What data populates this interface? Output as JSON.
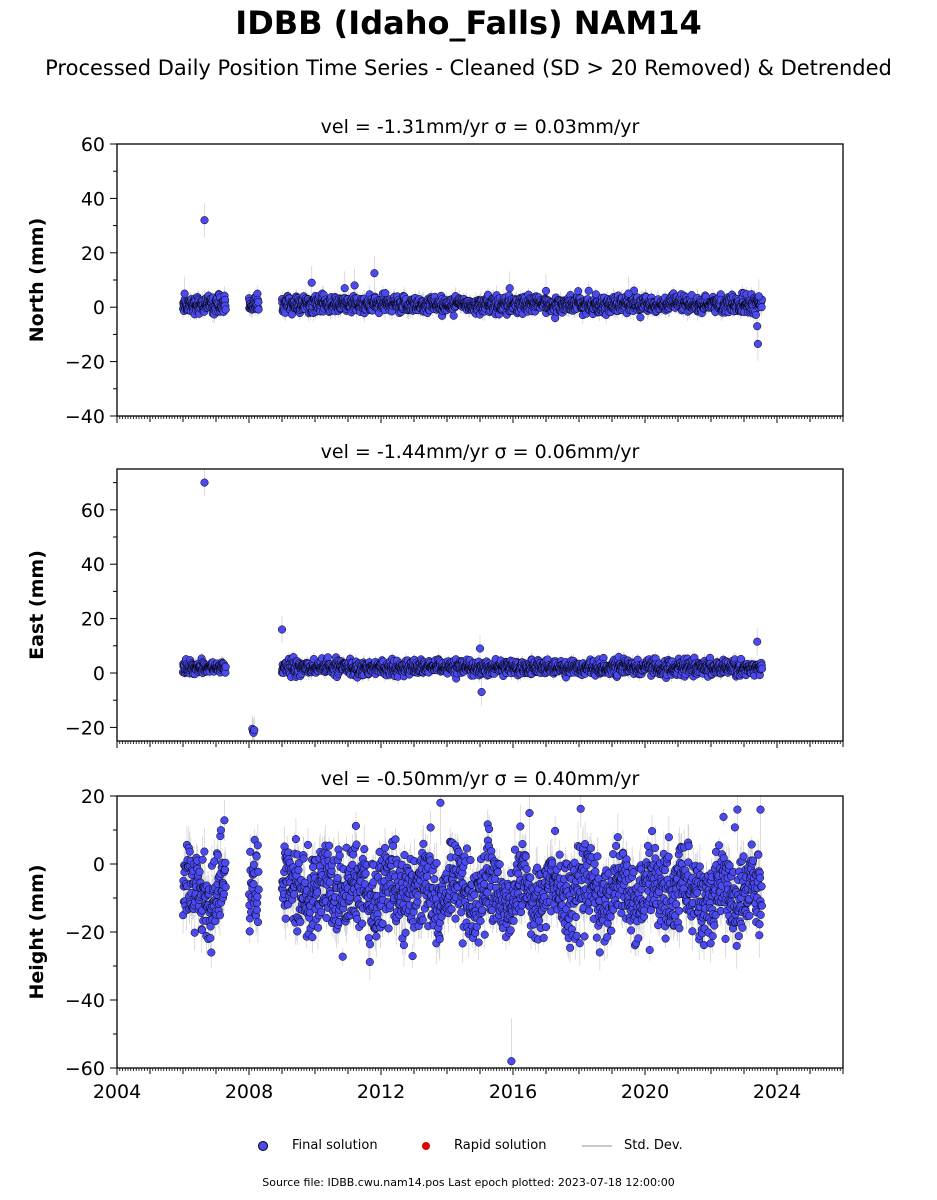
{
  "title": "IDBB (Idaho_Falls) NAM14",
  "subtitle": "Processed Daily Position Time Series - Cleaned (SD > 20 Removed) & Detrended",
  "footer": "Source file: IDBB.cwu.nam14.pos  Last epoch plotted: 2023-07-18 12:00:00",
  "legend": {
    "final": "Final solution",
    "rapid": "Rapid solution",
    "stddev": "Std. Dev."
  },
  "colors": {
    "final": "#4a4af0",
    "rapid": "#e00000",
    "stddev": "#b0b0b0",
    "edge": "#000000"
  },
  "chart_data": [
    {
      "type": "scatter",
      "title": "vel = -1.31mm/yr   σ = 0.03mm/yr",
      "ylabel": "North (mm)",
      "ylim": [
        -40,
        60
      ],
      "yticks": [
        -40,
        -20,
        0,
        20,
        40,
        60
      ],
      "xlim": [
        2004.0,
        2026.0
      ],
      "xticks": [
        2004,
        2008,
        2012,
        2016,
        2020,
        2024
      ],
      "segments": [
        [
          2006.0,
          2007.3
        ],
        [
          2008.0,
          2008.3
        ],
        [
          2009.0,
          2023.55
        ]
      ],
      "base": 1.0,
      "noise": 1.5,
      "sd": 2.5,
      "outliers": [
        [
          2006.65,
          32
        ],
        [
          2006.05,
          5
        ],
        [
          2009.9,
          9
        ],
        [
          2010.9,
          7
        ],
        [
          2011.2,
          8
        ],
        [
          2011.8,
          12.5
        ],
        [
          2015.9,
          7
        ],
        [
          2017.0,
          6
        ],
        [
          2019.5,
          5
        ],
        [
          2023.4,
          -7
        ],
        [
          2023.42,
          -13.5
        ],
        [
          2023.45,
          4
        ]
      ],
      "show_xlabels": false
    },
    {
      "type": "scatter",
      "title": "vel = -1.44mm/yr   σ = 0.06mm/yr",
      "ylabel": "East (mm)",
      "ylim": [
        -25,
        75
      ],
      "yticks": [
        -20,
        0,
        20,
        40,
        60
      ],
      "xlim": [
        2004.0,
        2026.0
      ],
      "xticks": [
        2004,
        2008,
        2012,
        2016,
        2020,
        2024
      ],
      "segments": [
        [
          2006.0,
          2007.3
        ],
        [
          2009.0,
          2023.55
        ]
      ],
      "base": 2.0,
      "noise": 1.3,
      "sd": 2.0,
      "outliers": [
        [
          2006.65,
          70
        ],
        [
          2008.1,
          -20.5
        ],
        [
          2008.12,
          -21.5
        ],
        [
          2008.14,
          -22
        ],
        [
          2008.16,
          -21
        ],
        [
          2009.0,
          16
        ],
        [
          2015.0,
          9
        ],
        [
          2015.05,
          -7
        ],
        [
          2023.4,
          11.5
        ]
      ],
      "show_xlabels": false
    },
    {
      "type": "scatter",
      "title": "vel = -0.50mm/yr   σ = 0.40mm/yr",
      "ylabel": "Height (mm)",
      "ylim": [
        -60,
        20
      ],
      "yticks": [
        -60,
        -40,
        -20,
        0,
        20
      ],
      "xlim": [
        2004.0,
        2026.0
      ],
      "xticks": [
        2004,
        2008,
        2012,
        2016,
        2020,
        2024
      ],
      "segments": [
        [
          2006.0,
          2007.3
        ],
        [
          2008.0,
          2008.3
        ],
        [
          2009.0,
          2023.55
        ]
      ],
      "base": -8.0,
      "noise": 6.0,
      "sd": 5.0,
      "outliers": [
        [
          2015.95,
          -58
        ],
        [
          2013.8,
          18
        ],
        [
          2022.8,
          16
        ],
        [
          2023.5,
          16
        ],
        [
          2016.5,
          15
        ]
      ],
      "show_xlabels": true
    }
  ]
}
